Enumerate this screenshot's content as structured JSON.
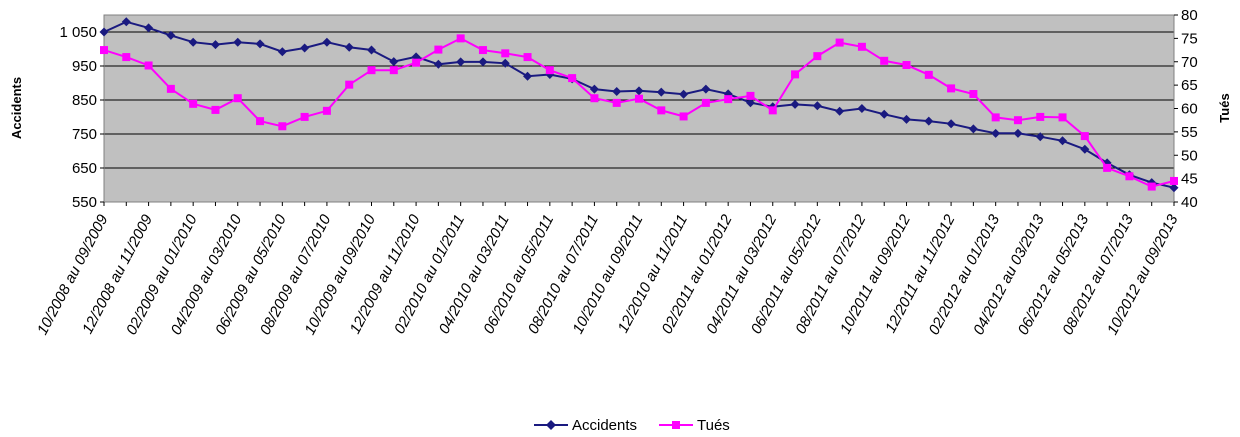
{
  "chart_data": {
    "type": "line",
    "title": "",
    "ylabel": "Accidents",
    "y2label": "Tués",
    "ylim": [
      550,
      1100
    ],
    "y2lim": [
      40,
      80
    ],
    "yticks": [
      "550",
      "650",
      "750",
      "850",
      "950",
      "1 050"
    ],
    "y2ticks": [
      "40",
      "45",
      "50",
      "55",
      "60",
      "65",
      "70",
      "75",
      "80"
    ],
    "grid": true,
    "legend_position": "bottom",
    "x": [
      "10/2008 au 09/2009",
      "11/2008 au 10/2009",
      "12/2008 au 11/2009",
      "01/2009 au 12/2009",
      "02/2009 au 01/2010",
      "03/2009 au 02/2010",
      "04/2009 au 03/2010",
      "05/2009 au 04/2010",
      "06/2009 au 05/2010",
      "07/2009 au 06/2010",
      "08/2009 au 07/2010",
      "09/2009 au 08/2010",
      "10/2009 au 09/2010",
      "11/2009 au 10/2010",
      "12/2009 au 11/2010",
      "01/2010 au 12/2010",
      "02/2010 au 01/2011",
      "03/2010 au 02/2011",
      "04/2010 au 03/2011",
      "05/2010 au 04/2011",
      "06/2010 au 05/2011",
      "07/2010 au 06/2011",
      "08/2010 au 07/2011",
      "09/2010 au 08/2011",
      "10/2010 au 09/2011",
      "11/2010 au 10/2011",
      "12/2010 au 11/2011",
      "01/2011 au 12/2011",
      "02/2011 au 01/2012",
      "03/2011 au 02/2012",
      "04/2011 au 03/2012",
      "05/2011 au 04/2012",
      "06/2011 au 05/2012",
      "07/2011 au 06/2012",
      "08/2011 au 07/2012",
      "09/2011 au 08/2012",
      "10/2011 au 09/2012",
      "11/2011 au 10/2012",
      "12/2011 au 11/2012",
      "01/2012 au 12/2012",
      "02/2012 au 01/2013",
      "03/2012 au 02/2013",
      "04/2012 au 03/2013",
      "05/2012 au 04/2013",
      "06/2012 au 05/2013",
      "07/2012 au 06/2013",
      "08/2012 au 07/2013",
      "09/2012 au 08/2013",
      "10/2012 au 09/2013"
    ],
    "xticks_shown_every": 2,
    "series": [
      {
        "name": "Accidents",
        "axis": "left",
        "color": "#1a1a80",
        "marker": "diamond",
        "values": [
          1050,
          1080,
          1062,
          1040,
          1020,
          1013,
          1020,
          1015,
          992,
          1003,
          1020,
          1005,
          997,
          963,
          977,
          955,
          962,
          962,
          958,
          920,
          925,
          912,
          882,
          875,
          877,
          873,
          867,
          882,
          868,
          842,
          830,
          837,
          833,
          817,
          825,
          808,
          793,
          788,
          780,
          765,
          752,
          752,
          742,
          730,
          705,
          665,
          630,
          607,
          592
        ]
      },
      {
        "name": "Tués",
        "axis": "right",
        "color": "#ff00ff",
        "marker": "square",
        "values": [
          72.5,
          71,
          69.2,
          64.2,
          61,
          59.7,
          62.2,
          57.3,
          56.2,
          58.2,
          59.5,
          65.1,
          68.2,
          68.2,
          69.8,
          72.6,
          75,
          72.5,
          71.8,
          71,
          68.2,
          66.5,
          62.2,
          61.2,
          62.1,
          59.6,
          58.3,
          61.2,
          62,
          62.7,
          59.6,
          67.3,
          71.2,
          74.1,
          73.2,
          70.2,
          69.3,
          67.2,
          64.3,
          63.1,
          58.1,
          57.5,
          58.2,
          58.1,
          54.1,
          47.3,
          45.5,
          43.3,
          44.5
        ]
      }
    ]
  }
}
